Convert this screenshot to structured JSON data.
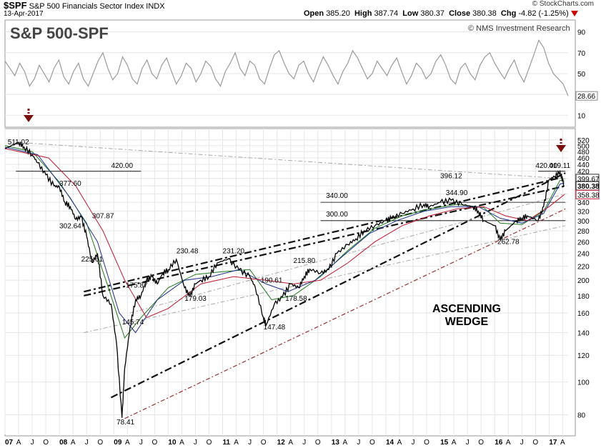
{
  "header": {
    "symbol": "$SPF",
    "name": "S&P 500 Financials Sector Index",
    "exchange": "INDX",
    "date": "13-Apr-2017",
    "watermark": "© StockCharts.com",
    "ohlc": {
      "open_label": "Open",
      "open": "385.20",
      "high_label": "High",
      "high": "387.74",
      "low_label": "Low",
      "low": "380.37",
      "close_label": "Close",
      "close": "380.38",
      "chg_label": "Chg",
      "chg": "-4.82 (-1.25%)"
    },
    "chg_icon": "down-triangle-icon"
  },
  "title": "S&P 500-SPF",
  "credit": "© NMS Investment Research",
  "annotation": "ASCENDING\nWEDGE",
  "colors": {
    "price": "#000000",
    "ma_short": "#1a7a1a",
    "ma_mid": "#1f2f8f",
    "ma_long": "#c0182e",
    "trendline_heavy": "#111111",
    "trendline_red": "#9b2f2f",
    "trendline_gray": "#a8a8a8",
    "arrow": "#7a1010",
    "grid": "#e6e6e6",
    "rsi_line": "#9a9a9a"
  },
  "chart_data": [
    {
      "type": "line",
      "title": "",
      "xlabel": "",
      "ylabel": "",
      "ylim": [
        0,
        100
      ],
      "yticks": [
        10,
        30,
        50,
        70,
        90
      ],
      "last_value_label": "28.66",
      "series": [
        {
          "values": [
            62,
            55,
            48,
            60,
            52,
            38,
            45,
            58,
            50,
            42,
            55,
            63,
            47,
            40,
            52,
            60,
            45,
            38,
            50,
            62,
            70,
            55,
            44,
            50,
            66,
            58,
            45,
            40,
            55,
            63,
            50,
            45,
            58,
            65,
            52,
            40,
            48,
            60,
            55,
            42,
            50,
            62,
            57,
            45,
            38,
            52,
            60,
            70,
            55,
            48,
            62,
            58,
            45,
            40,
            55,
            68,
            72,
            60,
            50,
            45,
            58,
            62,
            50,
            42,
            55,
            66,
            58,
            48,
            40,
            52,
            60,
            72,
            65,
            55,
            45,
            50,
            62,
            55,
            48,
            58,
            65,
            52,
            40,
            48,
            60,
            55,
            45,
            50,
            62,
            68,
            58,
            45,
            40,
            55,
            60,
            50,
            44,
            58,
            66,
            70,
            60,
            52,
            45,
            55,
            63,
            50,
            42,
            55,
            68,
            82,
            75,
            60,
            50,
            45,
            40,
            28.66
          ]
        }
      ]
    },
    {
      "type": "line",
      "title": "",
      "xlabel": "",
      "ylabel": "",
      "log_scale": true,
      "ylim": [
        70,
        540
      ],
      "yticks": [
        80,
        100,
        120,
        140,
        160,
        180,
        200,
        220,
        240,
        260,
        280,
        300,
        320,
        340,
        360,
        380,
        400,
        420,
        440,
        460,
        480,
        500,
        520
      ],
      "x_tick_labels": [
        "07",
        "A",
        "J",
        "O",
        "08",
        "A",
        "J",
        "O",
        "09",
        "A",
        "J",
        "O",
        "10",
        "A",
        "J",
        "O",
        "11",
        "A",
        "J",
        "O",
        "12",
        "A",
        "J",
        "O",
        "13",
        "A",
        "J",
        "O",
        "14",
        "A",
        "J",
        "O",
        "15",
        "A",
        "J",
        "O",
        "16",
        "A",
        "J",
        "O",
        "17",
        "A"
      ],
      "x_range": [
        2007.0,
        2017.35
      ],
      "last_price_labels": [
        "399.67",
        "380.38",
        "358.38"
      ],
      "series": [
        {
          "name": "",
          "x": [
            2007.0,
            2007.25,
            2007.35,
            2007.5,
            2007.6,
            2007.75,
            2007.9,
            2008.0,
            2008.1,
            2008.2,
            2008.3,
            2008.4,
            2008.5,
            2008.6,
            2008.7,
            2008.8,
            2008.95,
            2009.05,
            2009.15,
            2009.2,
            2009.3,
            2009.4,
            2009.5,
            2009.6,
            2009.7,
            2009.8,
            2009.9,
            2010.0,
            2010.15,
            2010.3,
            2010.4,
            2010.5,
            2010.6,
            2010.75,
            2010.9,
            2011.1,
            2011.3,
            2011.5,
            2011.6,
            2011.75,
            2011.8,
            2011.95,
            2012.1,
            2012.25,
            2012.4,
            2012.5,
            2012.6,
            2012.8,
            2012.95,
            2013.1,
            2013.3,
            2013.45,
            2013.6,
            2013.8,
            2014.0,
            2014.1,
            2014.3,
            2014.5,
            2014.7,
            2014.8,
            2015.0,
            2015.2,
            2015.4,
            2015.6,
            2015.7,
            2015.8,
            2016.0,
            2016.1,
            2016.2,
            2016.4,
            2016.5,
            2016.6,
            2016.8,
            2016.9,
            2017.0,
            2017.1,
            2017.2,
            2017.28
          ],
          "values": [
            490,
            511.02,
            495,
            470,
            445,
            410,
            380,
            377.6,
            340,
            330,
            302.64,
            307.87,
            270,
            225.61,
            240,
            180,
            170,
            130,
            78.41,
            110,
            145.74,
            175,
            180,
            200,
            205,
            195,
            210,
            215,
            230.48,
            190,
            179.03,
            195,
            200,
            205,
            225,
            231.2,
            215,
            205,
            190.61,
            155,
            147.48,
            170,
            178.58,
            195,
            190,
            205,
            215.8,
            210,
            215,
            240,
            255,
            265,
            280,
            290,
            300,
            305,
            315,
            325,
            335,
            330,
            340,
            344.9,
            335,
            330,
            320,
            300,
            290,
            262.78,
            280,
            300,
            305,
            310,
            300,
            330,
            396.12,
            405,
            419.11,
            380.38
          ]
        },
        {
          "name": "",
          "x": [
            2007.0,
            2007.5,
            2008.0,
            2008.5,
            2008.9,
            2009.2,
            2009.5,
            2010.0,
            2010.5,
            2011.0,
            2011.5,
            2011.9,
            2012.3,
            2012.8,
            2013.3,
            2013.8,
            2014.3,
            2014.8,
            2015.3,
            2015.8,
            2016.1,
            2016.5,
            2016.9,
            2017.2,
            2017.28
          ],
          "values": [
            500,
            480,
            390,
            295,
            190,
            135,
            155,
            190,
            208,
            212,
            215,
            175,
            180,
            205,
            245,
            285,
            310,
            325,
            335,
            328,
            295,
            292,
            320,
            395,
            392
          ]
        },
        {
          "name": "",
          "x": [
            2007.0,
            2007.6,
            2008.2,
            2008.7,
            2009.1,
            2009.4,
            2009.8,
            2010.3,
            2010.8,
            2011.3,
            2011.8,
            2012.2,
            2012.7,
            2013.2,
            2013.7,
            2014.2,
            2014.7,
            2015.2,
            2015.7,
            2016.1,
            2016.5,
            2016.9,
            2017.2,
            2017.28
          ],
          "values": [
            495,
            470,
            350,
            260,
            160,
            140,
            175,
            200,
            205,
            215,
            195,
            185,
            200,
            235,
            275,
            300,
            320,
            330,
            330,
            305,
            295,
            315,
            385,
            388
          ]
        },
        {
          "name": "",
          "x": [
            2007.0,
            2007.8,
            2008.3,
            2008.8,
            2009.2,
            2009.6,
            2010.0,
            2010.6,
            2011.2,
            2011.8,
            2012.3,
            2012.8,
            2013.3,
            2013.8,
            2014.3,
            2014.8,
            2015.3,
            2015.8,
            2016.2,
            2016.6,
            2017.0,
            2017.28
          ],
          "values": [
            490,
            460,
            380,
            280,
            200,
            155,
            165,
            195,
            205,
            200,
            195,
            200,
            225,
            260,
            290,
            310,
            325,
            330,
            310,
            300,
            330,
            358.38
          ]
        }
      ],
      "levels": [
        {
          "label": "420.00",
          "value": 420
        },
        {
          "label": "340.00",
          "value": 340
        },
        {
          "label": "300.00",
          "value": 300
        }
      ],
      "price_labels": [
        "511.02",
        "377.60",
        "307.87",
        "302.64",
        "225.61",
        "175.87",
        "145.74",
        "78.41",
        "230.48",
        "179.03",
        "231.20",
        "190.61",
        "147.48",
        "215.80",
        "178.58",
        "340.00",
        "300.00",
        "344.90",
        "396.12",
        "420.00",
        "420.00",
        "262.78",
        "419.11"
      ],
      "trendlines": [
        {
          "style": "heavy",
          "x": [
            2008.95,
            2017.3
          ],
          "values": [
            90,
            415
          ]
        },
        {
          "style": "heavy",
          "x": [
            2008.45,
            2017.3
          ],
          "values": [
            185,
            405
          ]
        },
        {
          "style": "heavy",
          "x": [
            2008.45,
            2017.3
          ],
          "values": [
            180,
            380
          ]
        },
        {
          "style": "red",
          "x": [
            2009.2,
            2017.3
          ],
          "values": [
            78,
            325
          ]
        },
        {
          "style": "gray",
          "x": [
            2008.45,
            2017.3
          ],
          "values": [
            140,
            290
          ]
        },
        {
          "style": "gray",
          "x": [
            2009.3,
            2017.3
          ],
          "values": [
            160,
            360
          ]
        },
        {
          "style": "gray",
          "x": [
            2007.25,
            2017.3
          ],
          "values": [
            511,
            399
          ]
        }
      ]
    }
  ]
}
